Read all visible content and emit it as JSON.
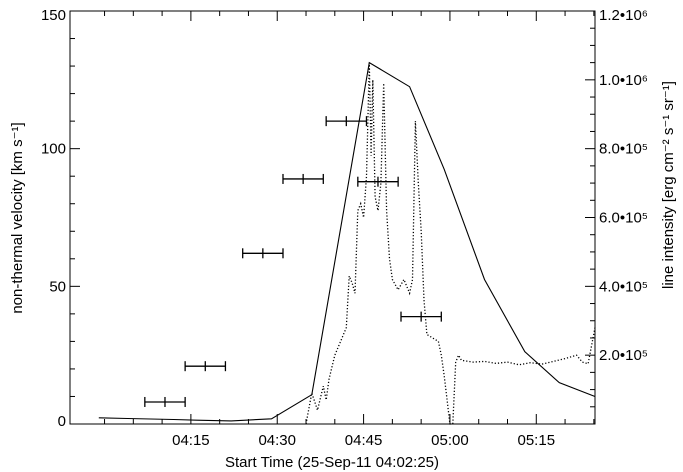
{
  "chart_data": {
    "type": "line",
    "xlabel": "Start Time (25-Sep-11 04:02:25)",
    "ylabel_left": "non-thermal velocity [km s⁻¹]",
    "ylabel_right": "line intensity [erg cm⁻² s⁻¹ sr⁻¹]",
    "x_range_minutes_after_0400": [
      -6.0,
      85.2
    ],
    "x_ticks": [
      {
        "minute": 15,
        "label": "04:15"
      },
      {
        "minute": 30,
        "label": "04:30"
      },
      {
        "minute": 45,
        "label": "04:45"
      },
      {
        "minute": 60,
        "label": "05:00"
      },
      {
        "minute": 75,
        "label": "05:15"
      }
    ],
    "ylim_left": [
      0,
      150
    ],
    "ylim_right": [
      0,
      1200000
    ],
    "y_ticks_left": [
      {
        "value": 0,
        "label": "0"
      },
      {
        "value": 50,
        "label": "50"
      },
      {
        "value": 100,
        "label": "100"
      },
      {
        "value": 150,
        "label": "150"
      }
    ],
    "y_ticks_right": [
      {
        "value": 200000,
        "label": "2.0•10⁵"
      },
      {
        "value": 400000,
        "label": "4.0•10⁵"
      },
      {
        "value": 600000,
        "label": "6.0•10⁵"
      },
      {
        "value": 800000,
        "label": "8.0•10⁵"
      },
      {
        "value": 1000000,
        "label": "1.0•10⁶"
      },
      {
        "value": 1200000,
        "label": "1.2•10⁶"
      }
    ],
    "series": [
      {
        "style": "solid",
        "axis": "right",
        "x": [
          -1.0,
          4.0,
          12.0,
          16.0,
          22.0,
          29.0,
          36.0,
          46.0,
          53.0,
          59.0,
          66.0,
          73.0,
          79.0,
          85.2
        ],
        "y": [
          18000,
          16000,
          13000,
          11000,
          9000,
          15000,
          85000,
          1050000,
          980000,
          740000,
          420000,
          210000,
          120000,
          80000
        ]
      },
      {
        "style": "dotted",
        "axis": "right",
        "x": [
          35.0,
          36.0,
          37.0,
          38.0,
          38.5,
          39.0,
          40.0,
          41.0,
          42.0,
          42.5,
          43.0,
          43.5,
          44.0,
          44.5,
          45.0,
          45.5,
          46.0,
          46.3,
          46.6,
          47.0,
          47.5,
          48.0,
          48.5,
          49.0,
          49.5,
          50.0,
          51.0,
          52.0,
          53.0,
          53.5,
          54.0,
          54.5,
          55.0,
          55.5,
          56.0,
          57.0,
          58.0,
          58.5,
          59.0,
          59.5,
          60.0,
          60.5,
          61.0,
          61.5,
          62.0,
          64.0,
          66.0,
          68.0,
          70.0,
          72.0,
          74.0,
          76.0,
          78.0,
          80.0,
          82.0,
          83.0,
          84.0,
          85.2
        ],
        "y": [
          0,
          90000,
          40000,
          110000,
          70000,
          130000,
          200000,
          240000,
          280000,
          430000,
          410000,
          380000,
          620000,
          640000,
          600000,
          720000,
          1050000,
          780000,
          1000000,
          660000,
          620000,
          700000,
          990000,
          620000,
          480000,
          420000,
          390000,
          420000,
          380000,
          420000,
          880000,
          700000,
          560000,
          360000,
          260000,
          250000,
          240000,
          200000,
          140000,
          70000,
          0,
          0,
          180000,
          200000,
          185000,
          180000,
          182000,
          176000,
          180000,
          172000,
          178000,
          174000,
          182000,
          190000,
          200000,
          180000,
          175000,
          280000
        ]
      },
      {
        "style": "points-with-error-bars",
        "axis": "left",
        "x": [
          10.5,
          17.5,
          27.5,
          34.5,
          42.0,
          47.5,
          55.0
        ],
        "x_err": [
          3.5,
          3.5,
          3.5,
          3.5,
          3.5,
          3.5,
          3.5
        ],
        "y": [
          8,
          21,
          62,
          89,
          110,
          88,
          39
        ]
      }
    ]
  }
}
